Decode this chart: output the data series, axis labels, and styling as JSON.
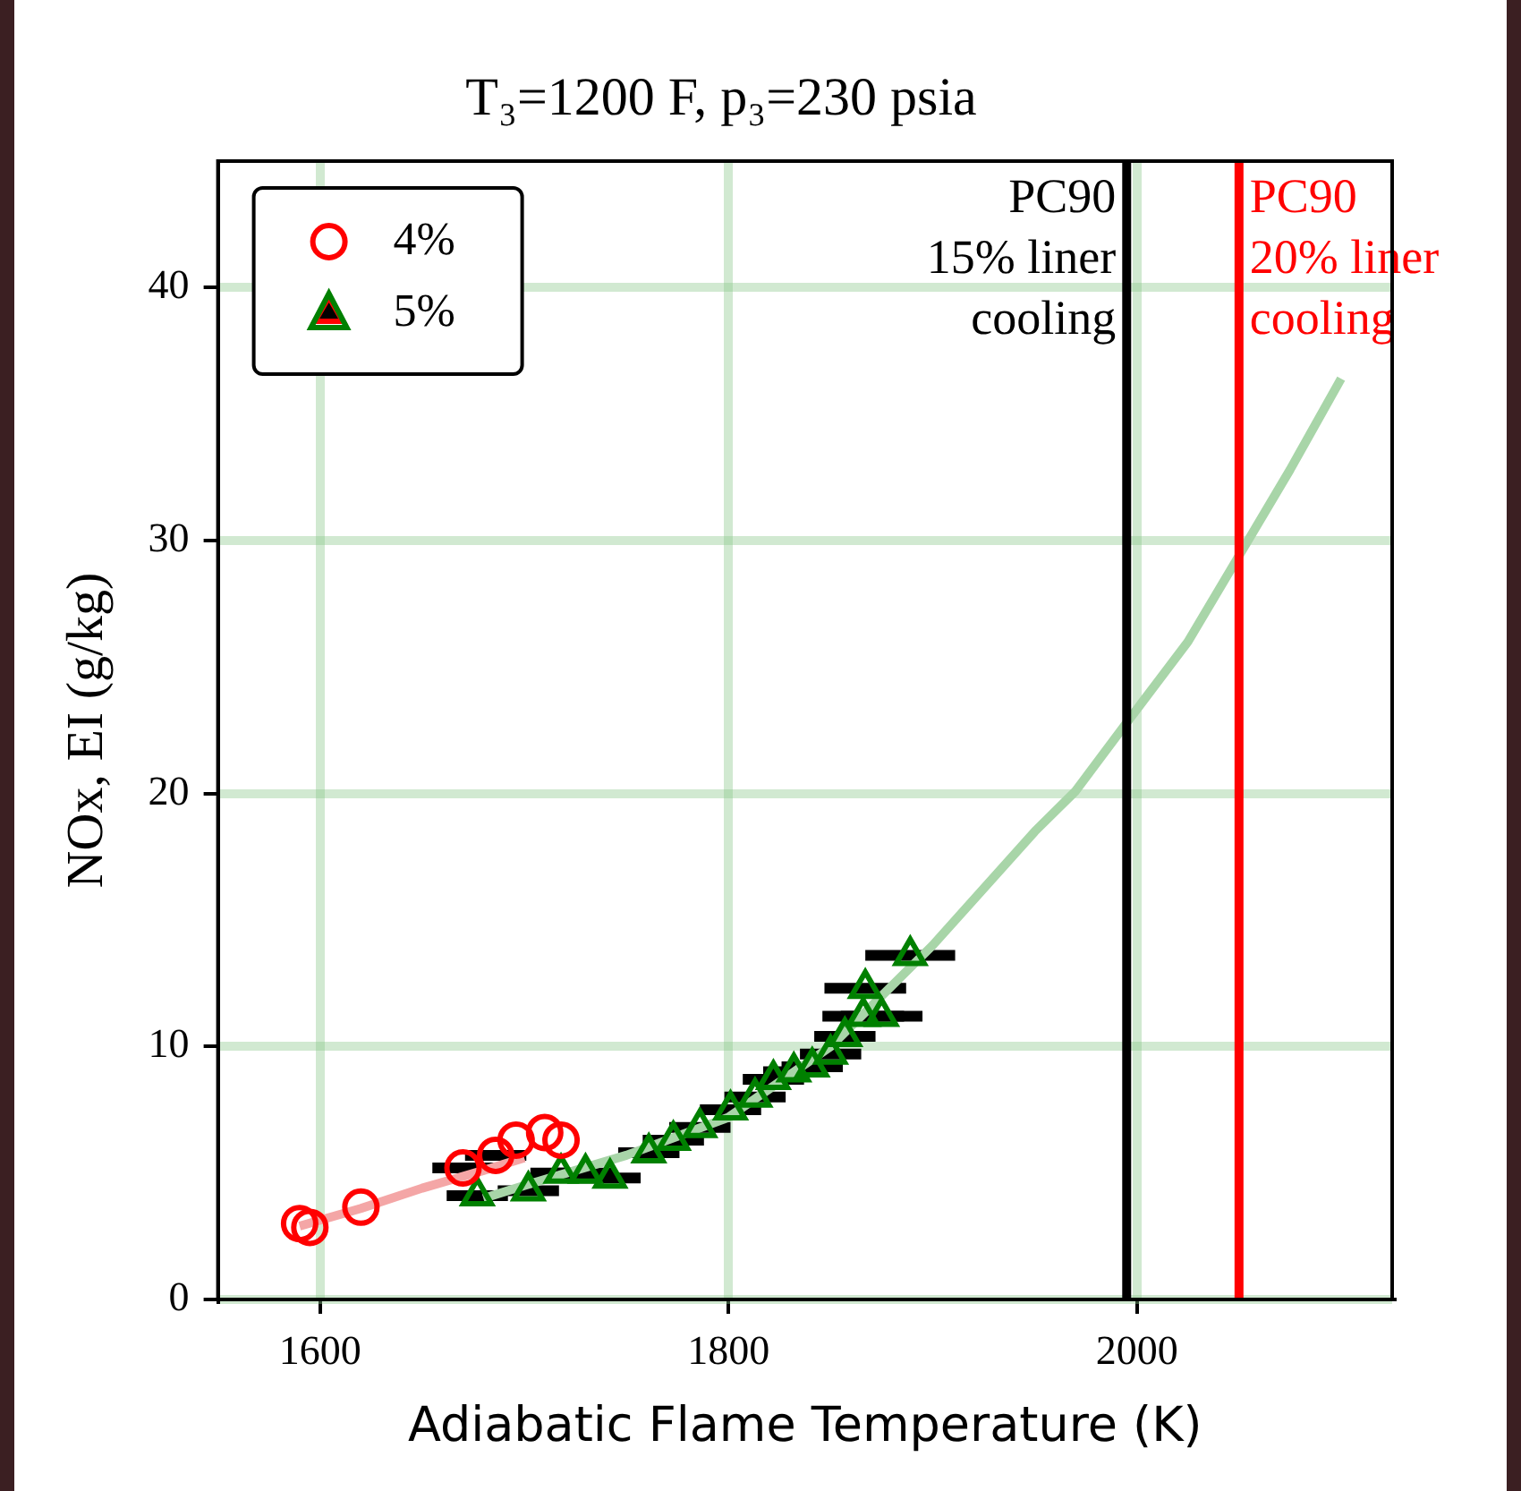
{
  "chart_data": {
    "type": "scatter",
    "title": "T₃=1200 F, p₃=230 psia",
    "xlabel": "Adiabatic Flame Temperature (K)",
    "ylabel": "NOx, EI (g/kg)",
    "xlim": [
      1550,
      2125
    ],
    "xticks": [
      1600,
      1800,
      2000
    ],
    "ylim": [
      0,
      45
    ],
    "yticks": [
      0,
      10,
      20,
      30,
      40
    ],
    "grid": true,
    "legend": "top left",
    "series": [
      {
        "type": "line",
        "color": "#f4a6a6",
        "marker": "none",
        "x": [
          1590,
          1620,
          1650,
          1680,
          1700
        ],
        "values": [
          2.9,
          3.6,
          4.4,
          5.1,
          5.6
        ]
      },
      {
        "type": "line",
        "color": "#a8d5a8",
        "marker": "none",
        "x": [
          1680,
          1700,
          1750,
          1800,
          1850,
          1900,
          1950,
          1970,
          1995,
          2025,
          2050,
          2075,
          2100
        ],
        "values": [
          4.0,
          4.5,
          5.7,
          7.2,
          10.0,
          14.0,
          18.5,
          20.1,
          22.8,
          26.0,
          29.4,
          32.8,
          36.4
        ]
      },
      {
        "name": "4%",
        "color": "#ff0000",
        "marker": "circle",
        "x": [
          1590,
          1595,
          1620,
          1670,
          1686,
          1696,
          1710,
          1718
        ],
        "values": [
          3.0,
          2.85,
          3.65,
          5.2,
          5.7,
          6.3,
          6.6,
          6.3
        ],
        "xerrors": [
          null,
          null,
          null,
          15,
          15,
          null,
          null,
          null
        ]
      },
      {
        "name": "5%",
        "color": "#008000",
        "marker": "triangle",
        "x": [
          1677,
          1702,
          1718,
          1730,
          1742,
          1761,
          1773,
          1786,
          1801,
          1813,
          1822,
          1832,
          1841,
          1850,
          1857,
          1866,
          1867,
          1875,
          1889
        ],
        "values": [
          4.1,
          4.3,
          5.0,
          5.0,
          4.8,
          5.8,
          6.3,
          6.8,
          7.5,
          8.0,
          8.7,
          9.0,
          9.2,
          9.7,
          10.4,
          11.2,
          12.3,
          11.2,
          13.6
        ],
        "xerrors": [
          15,
          15,
          15,
          15,
          15,
          15,
          15,
          15,
          15,
          15,
          15,
          15,
          15,
          15,
          15,
          20,
          20,
          20,
          22
        ]
      }
    ],
    "ref_lines": [
      {
        "axis": "x",
        "value": 1995,
        "label": "PC90\n15% liner\ncooling",
        "color": "#000000"
      },
      {
        "axis": "x",
        "value": 2050,
        "label": "PC90\n20% liner\ncooling",
        "color": "#ff0000"
      }
    ]
  }
}
